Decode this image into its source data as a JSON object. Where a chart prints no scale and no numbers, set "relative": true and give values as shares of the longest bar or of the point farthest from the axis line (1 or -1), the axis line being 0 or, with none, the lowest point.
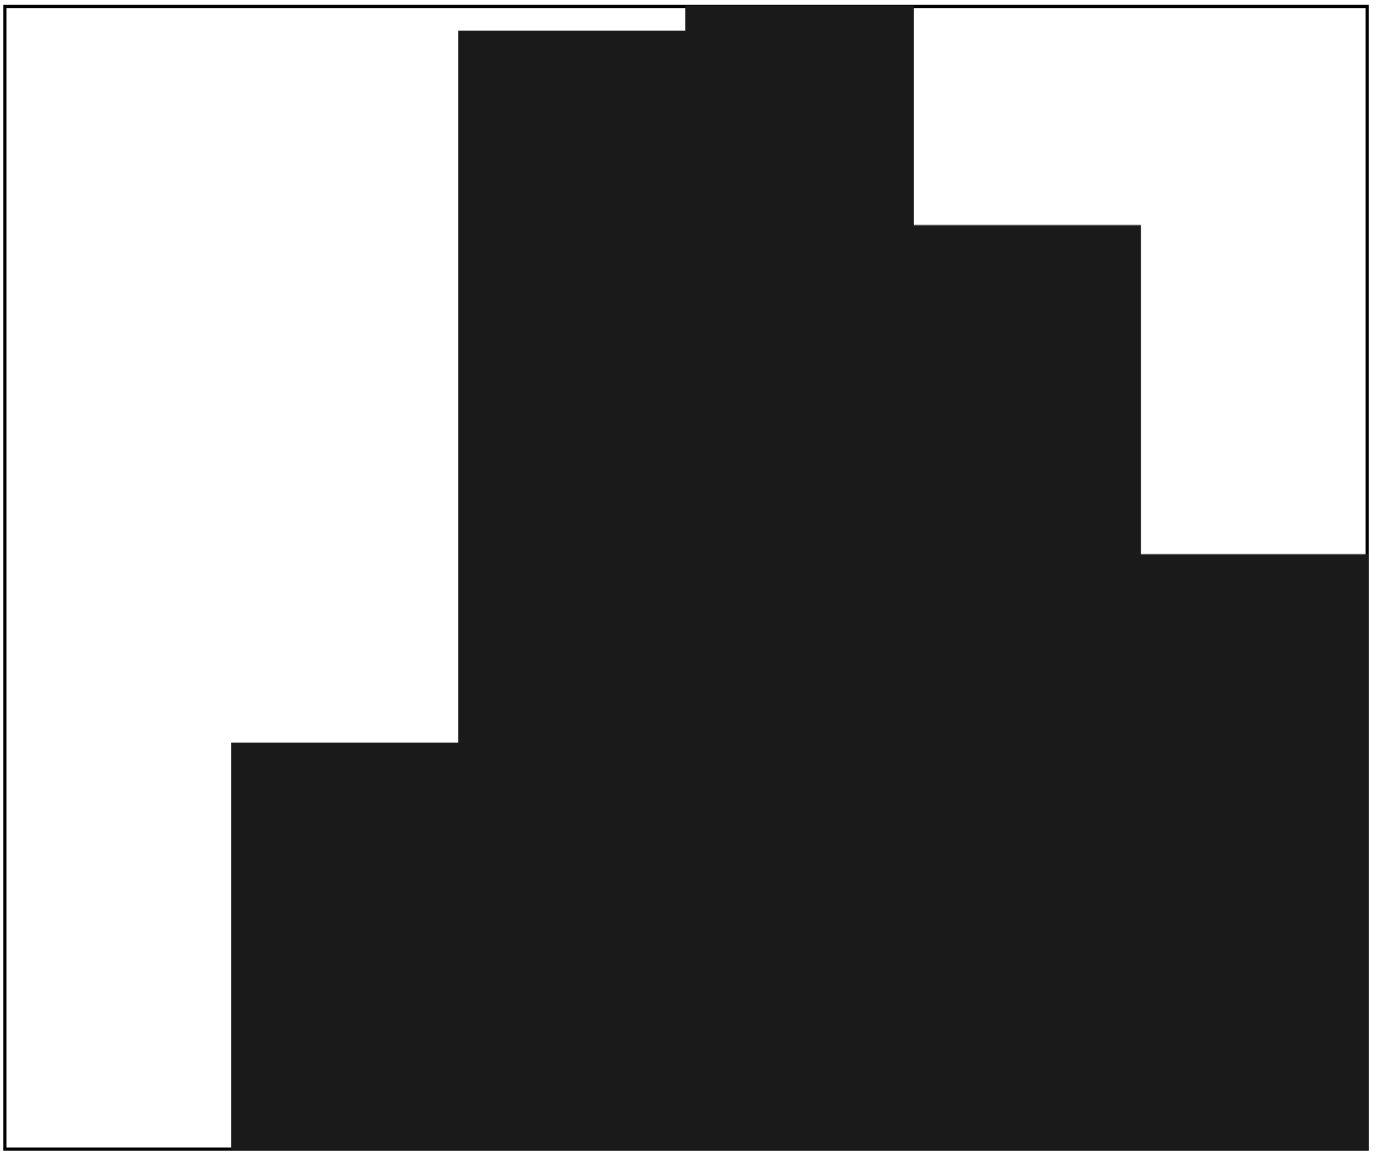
{
  "chart_data": {
    "type": "bar",
    "relative": true,
    "categories": [
      null,
      null,
      null,
      null,
      null
    ],
    "values": [
      0.355,
      0.978,
      1,
      0.808,
      0.52
    ],
    "color": "#1a1a1a",
    "grid": false,
    "tick_labels": false
  }
}
